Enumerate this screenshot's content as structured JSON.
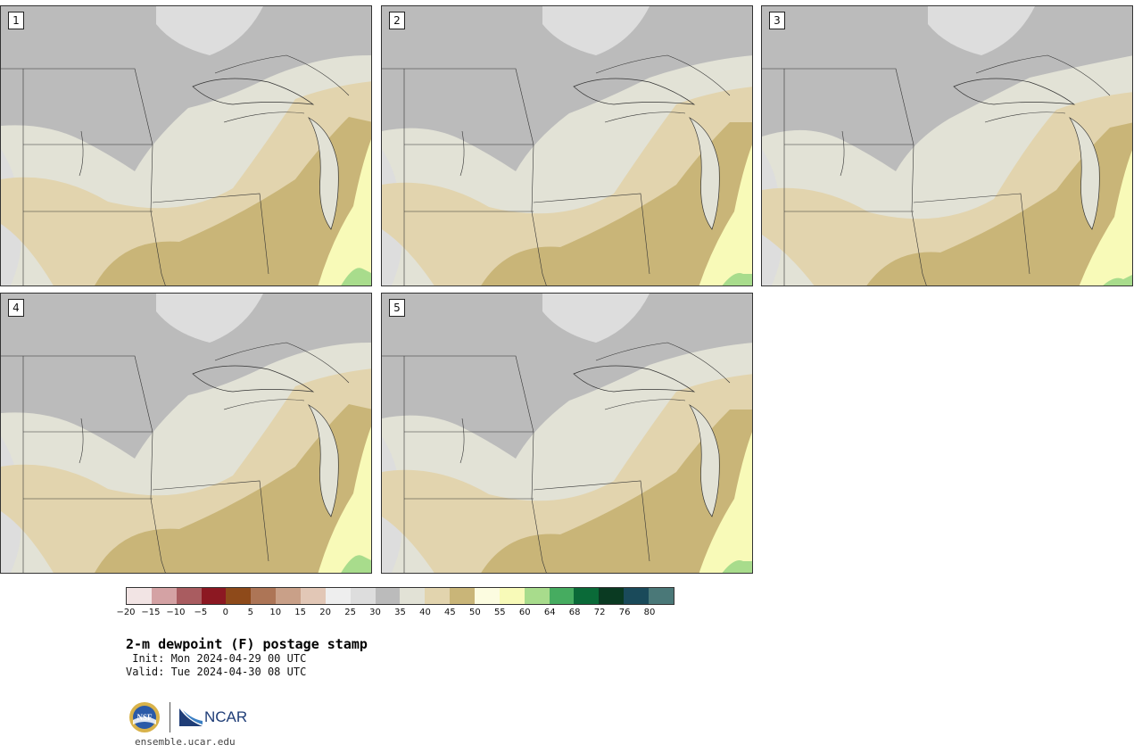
{
  "panels": [
    {
      "id": "p1",
      "label": "1"
    },
    {
      "id": "p2",
      "label": "2"
    },
    {
      "id": "p3",
      "label": "3"
    },
    {
      "id": "p4",
      "label": "4"
    },
    {
      "id": "p5",
      "label": "5"
    }
  ],
  "colorbar": {
    "colors": [
      "#f2e4e4",
      "#d4a2a4",
      "#a95c60",
      "#8c1822",
      "#8e4a1a",
      "#ad7556",
      "#c9a088",
      "#e2c7b6",
      "#eeeeee",
      "#dddddd",
      "#bbbbbb",
      "#e2e2d6",
      "#e2d4ae",
      "#c9b578",
      "#fcfce0",
      "#f8fab8",
      "#a8dc8c",
      "#46ac60",
      "#0a6a38",
      "#0a3a22",
      "#1a4a5a",
      "#4a7878"
    ],
    "ticks": [
      "−20",
      "−15",
      "−10",
      "−5",
      "0",
      "5",
      "10",
      "15",
      "20",
      "25",
      "30",
      "35",
      "40",
      "45",
      "50",
      "55",
      "60",
      "64",
      "68",
      "72",
      "76",
      "80"
    ]
  },
  "title": "2-m dewpoint (F) postage stamp",
  "init": " Init: Mon 2024-04-29 00 UTC",
  "valid": "Valid: Tue 2024-04-30 08 UTC",
  "logos": {
    "nsf": "NSF",
    "ncar": "NCAR"
  },
  "website": "ensemble.ucar.edu"
}
